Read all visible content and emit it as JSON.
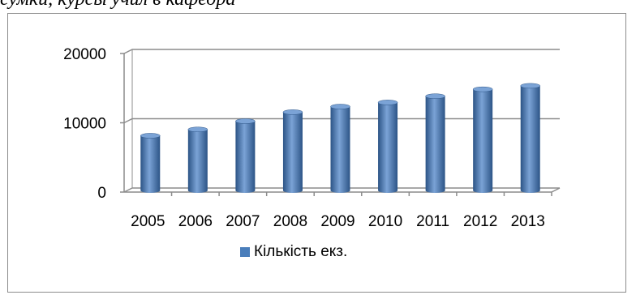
{
  "caption": "сумки, курсы учил в кафедра",
  "colors": {
    "bar": "#4a7ebb",
    "bar_dark": "#2c5486",
    "bar_light": "#7ba3d6"
  },
  "chart_data": {
    "type": "bar",
    "categories": [
      "2005",
      "2006",
      "2007",
      "2008",
      "2009",
      "2010",
      "2011",
      "2012",
      "2013"
    ],
    "series": [
      {
        "name": "Кількість екз.",
        "values": [
          7900,
          8800,
          10000,
          11300,
          12100,
          12700,
          13600,
          14600,
          15100
        ]
      }
    ],
    "yticks": [
      "0",
      "10000",
      "20000"
    ],
    "ylim": [
      0,
      20000
    ],
    "grid": true,
    "legend": "bottom",
    "title": "",
    "xlabel": "",
    "ylabel": ""
  }
}
